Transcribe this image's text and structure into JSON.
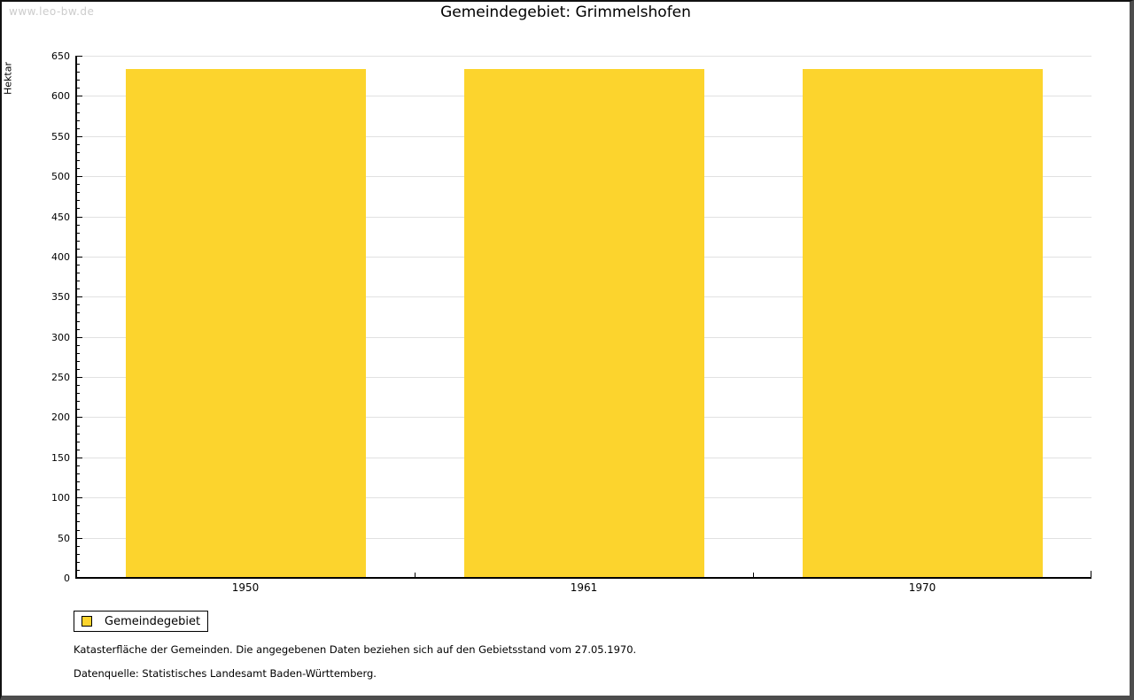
{
  "watermark": "www.leo-bw.de",
  "chart_data": {
    "type": "bar",
    "title": "Gemeindegebiet: Grimmelshofen",
    "categories": [
      "1950",
      "1961",
      "1970"
    ],
    "values": [
      633,
      633,
      633
    ],
    "xlabel": "",
    "ylabel": "Hektar",
    "ylim": [
      0,
      650
    ],
    "y_major_step": 50,
    "y_minor_step": 10,
    "grid": "horizontal-major",
    "legend_position": "bottom-left",
    "series_name": "Gemeindegebiet",
    "colors": {
      "bar": "#fcd42d",
      "gridline": "#e1e1e1",
      "axis": "#000000",
      "watermark": "#cccccc"
    }
  },
  "legend": {
    "entries": [
      {
        "label": "Gemeindegebiet",
        "color": "#fcd42d"
      }
    ]
  },
  "notes": {
    "line1": "Katasterfläche der Gemeinden. Die angegebenen Daten beziehen sich auf den Gebietsstand vom 27.05.1970.",
    "line2": "Datenquelle: Statistisches Landesamt Baden-Württemberg."
  }
}
